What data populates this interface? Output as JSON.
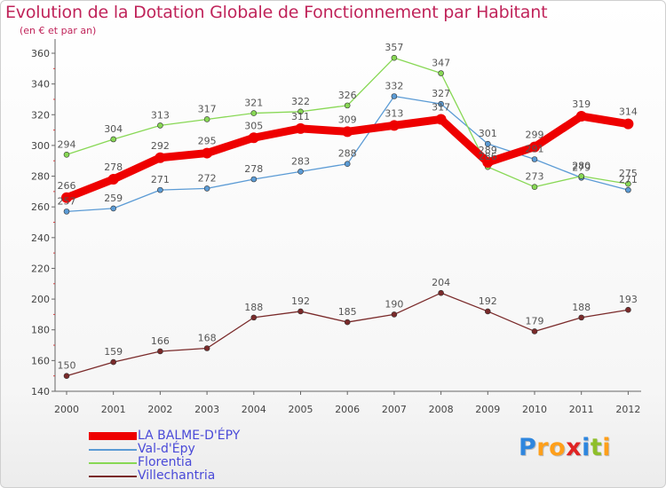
{
  "chart_data": {
    "type": "line",
    "title": "Evolution de la Dotation Globale de Fonctionnement par Habitant",
    "subtitle": "(en € et par an)",
    "xlabel": "",
    "ylabel": "",
    "ylim": [
      140,
      360
    ],
    "yticks": [
      140,
      160,
      180,
      200,
      220,
      240,
      260,
      280,
      300,
      320,
      340,
      360
    ],
    "categories": [
      "2000",
      "2001",
      "2002",
      "2003",
      "2004",
      "2005",
      "2006",
      "2007",
      "2008",
      "2009",
      "2010",
      "2011",
      "2012"
    ],
    "grid": false,
    "legend": "bottom-left",
    "series": [
      {
        "name": "LA BALME-D'ÉPY",
        "color": "#ee0000",
        "values": [
          266,
          278,
          292,
          295,
          305,
          311,
          309,
          313,
          317,
          289,
          299,
          319,
          314
        ]
      },
      {
        "name": "Val-d'Épy",
        "color": "#5b9bd5",
        "values": [
          257,
          259,
          271,
          272,
          278,
          283,
          288,
          332,
          327,
          301,
          291,
          279,
          271
        ]
      },
      {
        "name": "Florentia",
        "color": "#88d855",
        "values": [
          294,
          304,
          313,
          317,
          321,
          322,
          326,
          357,
          347,
          286,
          273,
          280,
          275
        ]
      },
      {
        "name": "Villechantria",
        "color": "#7a2a2a",
        "values": [
          150,
          159,
          166,
          168,
          188,
          192,
          185,
          190,
          204,
          192,
          179,
          188,
          193
        ]
      }
    ]
  },
  "logo": {
    "letters": [
      "P",
      "r",
      "o",
      "x",
      "i",
      "t",
      "i"
    ],
    "colors": [
      "#2e86de",
      "#ff9f1a",
      "#ff9f1a",
      "#e02424",
      "#2e86de",
      "#8fbf2a",
      "#ff9f1a"
    ]
  }
}
